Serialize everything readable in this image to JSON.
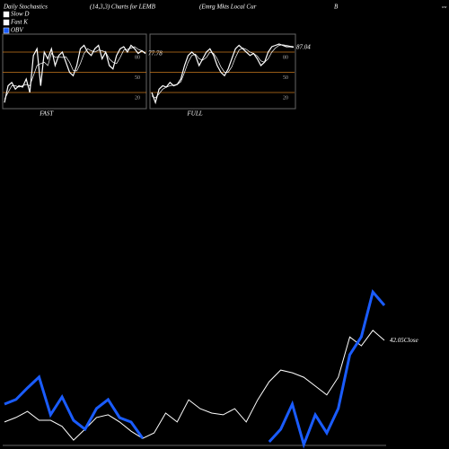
{
  "header": {
    "title": "Daily Stochastics",
    "subtitle": "(14,3,3) Charts for LEMB",
    "name": "(Emrg Mkts Local Cur",
    "letter": "B",
    "corner": "ww"
  },
  "chart_data": [
    {
      "type": "line",
      "label": "FAST",
      "ylim": [
        0,
        100
      ],
      "yticks": [
        80,
        50,
        20
      ],
      "grid_color": "#c8781e",
      "series": [
        {
          "name": "Slow D",
          "color": "#ffffff",
          "values": [
            10,
            20,
            30,
            30,
            28,
            30,
            32,
            30,
            45,
            60,
            63,
            65,
            60,
            78,
            72,
            73,
            72,
            73,
            65,
            53,
            52,
            63,
            78,
            85,
            82,
            80,
            83,
            82,
            80,
            70,
            65,
            63,
            72,
            83,
            84,
            86,
            88,
            84,
            82,
            79
          ]
        },
        {
          "name": "Fast K",
          "color": "#ffffff",
          "values": [
            5,
            30,
            35,
            25,
            30,
            28,
            40,
            20,
            75,
            85,
            30,
            80,
            70,
            85,
            60,
            75,
            80,
            65,
            50,
            45,
            60,
            85,
            90,
            80,
            75,
            85,
            90,
            70,
            80,
            60,
            55,
            75,
            85,
            88,
            80,
            90,
            85,
            78,
            82,
            77.78
          ]
        }
      ]
    },
    {
      "type": "line",
      "label": "FULL",
      "ylim": [
        0,
        100
      ],
      "yticks": [
        80,
        50,
        20
      ],
      "grid_color": "#c8781e",
      "series": [
        {
          "color": "#ffffff",
          "values": [
            15,
            12,
            18,
            25,
            28,
            30,
            31,
            32,
            36,
            50,
            65,
            75,
            77,
            70,
            68,
            72,
            80,
            78,
            70,
            58,
            50,
            50,
            58,
            72,
            83,
            86,
            84,
            80,
            78,
            74,
            67,
            65,
            70,
            80,
            86,
            90,
            91,
            90,
            89,
            88
          ]
        },
        {
          "color": "#ffffff",
          "values": [
            20,
            5,
            25,
            30,
            28,
            35,
            30,
            32,
            40,
            60,
            75,
            80,
            75,
            60,
            70,
            80,
            85,
            75,
            60,
            50,
            45,
            55,
            70,
            85,
            90,
            85,
            80,
            75,
            78,
            70,
            60,
            65,
            80,
            88,
            90,
            92,
            90,
            88,
            88,
            87.04
          ]
        }
      ]
    },
    {
      "type": "line",
      "ylim": [
        39,
        43.6
      ],
      "y2lim": [
        0,
        100
      ],
      "series": [
        {
          "name": "Close",
          "color": "#ffffff",
          "values": [
            39.66,
            39.79,
            39.97,
            39.71,
            39.71,
            39.53,
            39.13,
            39.45,
            39.79,
            39.87,
            39.66,
            39.39,
            39.18,
            39.34,
            39.92,
            39.66,
            40.31,
            40.05,
            39.92,
            39.87,
            40.05,
            39.66,
            40.31,
            40.84,
            41.18,
            41.1,
            40.97,
            40.71,
            40.45,
            40.97,
            42.15,
            41.89,
            42.34,
            42.05
          ]
        },
        {
          "name": "OBV",
          "color": "#1a5cff",
          "axis": "y2",
          "values": [
            25.7,
            28.6,
            36,
            42.9,
            18.9,
            30.3,
            15.4,
            9.7,
            22.9,
            28.6,
            17.1,
            14.3,
            4,
            null,
            null,
            null,
            null,
            null,
            null,
            null,
            null,
            null,
            null,
            1.7,
            9.7,
            25.7,
            0,
            18.9,
            7.4,
            22.9,
            57.1,
            68.6,
            97.1,
            88.6
          ]
        }
      ]
    }
  ]
}
